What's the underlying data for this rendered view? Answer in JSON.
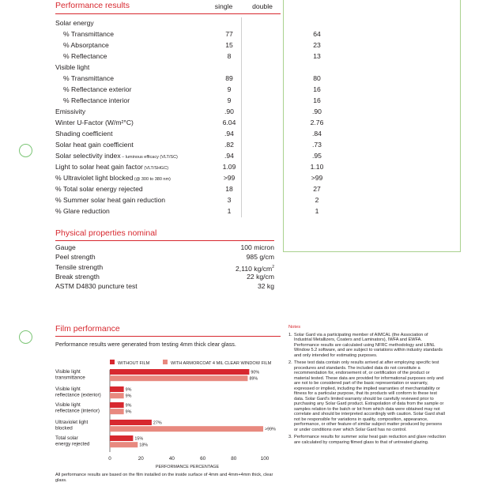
{
  "performance": {
    "title": "Performance results",
    "col_single": "single",
    "col_double": "double",
    "rows": [
      {
        "label": "Solar energy",
        "indent": false,
        "single": "",
        "double": ""
      },
      {
        "label": "% Transmittance",
        "indent": true,
        "single": "77",
        "double": "64"
      },
      {
        "label": "% Absorptance",
        "indent": true,
        "single": "15",
        "double": "23"
      },
      {
        "label": "% Reflectance",
        "indent": true,
        "single": "8",
        "double": "13"
      },
      {
        "label": "Visible light",
        "indent": false,
        "single": "",
        "double": ""
      },
      {
        "label": "% Transmittance",
        "indent": true,
        "single": "89",
        "double": "80"
      },
      {
        "label": "% Reflectance exterior",
        "indent": true,
        "single": "9",
        "double": "16"
      },
      {
        "label": "% Reflectance interior",
        "indent": true,
        "single": "9",
        "double": "16"
      },
      {
        "label": "Emissivity",
        "indent": false,
        "single": ".90",
        "double": ".90"
      },
      {
        "label": "Winter U-Factor (W/m²°C)",
        "indent": false,
        "single": "6.04",
        "double": "2.76"
      },
      {
        "label": "Shading coefficient",
        "indent": false,
        "single": ".94",
        "double": ".84"
      },
      {
        "label": "Solar heat gain coefficient",
        "indent": false,
        "single": ".82",
        "double": ".73"
      },
      {
        "label": "Solar selectivity index",
        "suffix": " – luminous efficacy (VLT/SC)",
        "indent": false,
        "single": ".94",
        "double": ".95"
      },
      {
        "label": "Light to solar heat gain factor",
        "suffix": " (VLT/SHGC)",
        "indent": false,
        "single": "1.09",
        "double": "1.10"
      },
      {
        "label": "% Ultraviolet light blocked",
        "suffix": " (@ 300 to 380 nm)",
        "indent": false,
        "single": ">99",
        "double": ">99"
      },
      {
        "label": "% Total solar energy rejected",
        "indent": false,
        "single": "18",
        "double": "27"
      },
      {
        "label": "% Summer solar heat gain reduction",
        "indent": false,
        "single": "3",
        "double": "2"
      },
      {
        "label": "% Glare reduction",
        "indent": false,
        "single": "1",
        "double": "1"
      }
    ]
  },
  "physical": {
    "title": "Physical properties nominal",
    "rows": [
      {
        "label": "Gauge",
        "value": "100 micron"
      },
      {
        "label": "Peel strength",
        "value": "985 g/cm"
      },
      {
        "label": "Tensile strength",
        "value": "2,110 kg/cm",
        "sup": "2"
      },
      {
        "label": "Break strength",
        "value": "22 kg/cm"
      },
      {
        "label": "ASTM D4830 puncture test",
        "value": "32 kg"
      }
    ]
  },
  "film": {
    "title": "Film performance",
    "subtitle": "Performance results were generated from testing 4mm thick clear glass.",
    "footnote": "All performance results are based on the film installed on the inside surface of 4mm and 4mm+4mm thick, clear glass."
  },
  "chart_data": {
    "type": "bar",
    "orientation": "horizontal",
    "categories": [
      [
        "Visible light",
        "transmittance"
      ],
      [
        "Visible light",
        "reflectance (exterior)"
      ],
      [
        "Visible light",
        "reflectance (interior)"
      ],
      [
        "Ultraviolet light",
        "blocked"
      ],
      [
        "Total solar",
        "energy rejected"
      ]
    ],
    "series": [
      {
        "name": "WITHOUT FILM",
        "color": "#d7282f",
        "values": [
          90,
          9,
          9,
          27,
          15
        ],
        "labels": [
          "90%",
          "9%",
          "9%",
          "27%",
          "15%"
        ]
      },
      {
        "name": "WITH ARMORCOAT 4 MIL CLEAR WINDOW FILM",
        "color": "#e8897f",
        "values": [
          89,
          9,
          9,
          99,
          18
        ],
        "labels": [
          "89%",
          "9%",
          "9%",
          ">99%",
          "18%"
        ]
      }
    ],
    "xticks": [
      "0",
      "20",
      "40",
      "60",
      "80",
      "100"
    ],
    "xlim": [
      0,
      100
    ],
    "xlabel": "PERFORMANCE PERCENTAGE",
    "legend": "top"
  },
  "notes": {
    "title": "Notes",
    "items": [
      {
        "num": "1.",
        "text": "Solar Gard via a participating member of AIMCAL (the Association of Industrial Metallizers, Coaters and Laminators), IWFA and EWFA. Performance results are calculated using NFRC methodology and LBNL Window 5.2 software, and are subject to variations within industry standards and only intended for estimating purposes."
      },
      {
        "num": "2.",
        "text": "These test data contain only results arrived at after employing specific test procedures and standards. The included data do not constitute a recommendation for, endorsement of, or certification of the product or material tested. These data are provided for informational purposes only and are not to be considered part of the basic representation or warranty, expressed or implied, including the implied warranties of merchantability or fitness for a particular purpose, that its products will conform to these test data. Solar Gard's limited warranty should be carefully reviewed prior to purchasing any Solar Gard product. Extrapolation of data from the sample or samples relation to the batch or lot from which data were obtained may not correlate and should be interpreted accordingly with caution. Solar Gard shall not be responsible for variations in quality, composition, appearance, performance, or other feature of similar subject matter produced by persons or under conditions over which Solar Gard has no control."
      },
      {
        "num": "3.",
        "text": "Performance results for summer solar heat gain reduction and glare reduction are calculated by comparing filmed glass to that of untreated glazing."
      }
    ]
  }
}
